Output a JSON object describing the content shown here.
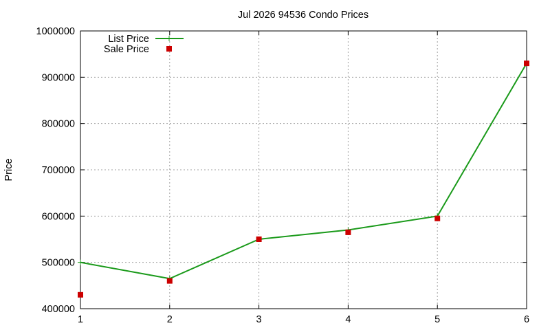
{
  "chart_data": {
    "type": "line",
    "title": "Jul 2026 94536 Condo Prices",
    "xlabel": "",
    "ylabel": "Price",
    "x": [
      1,
      2,
      3,
      4,
      5,
      6
    ],
    "xlim": [
      1,
      6
    ],
    "ylim": [
      400000,
      1000000
    ],
    "x_ticks": [
      "1",
      "2",
      "3",
      "4",
      "5",
      "6"
    ],
    "y_ticks": [
      "400000",
      "500000",
      "600000",
      "700000",
      "800000",
      "900000",
      "1000000"
    ],
    "grid": true,
    "legend_position": "top-left",
    "series": [
      {
        "name": "List Price",
        "style": "line",
        "color": "#1a9a1a",
        "values": [
          500000,
          465000,
          550000,
          570000,
          600000,
          930000
        ]
      },
      {
        "name": "Sale Price",
        "style": "points",
        "color": "#cc0000",
        "values": [
          430000,
          460000,
          550000,
          565000,
          595000,
          930000
        ]
      }
    ]
  }
}
